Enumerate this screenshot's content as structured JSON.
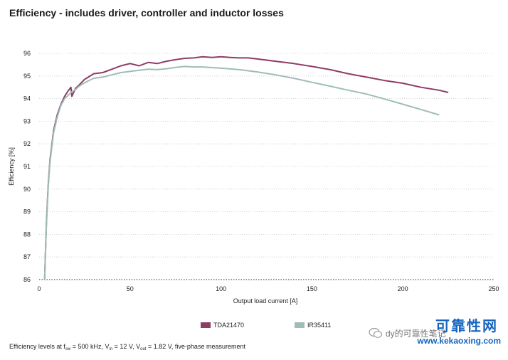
{
  "title": "Efficiency - includes driver, controller and inductor losses",
  "chart_data": {
    "type": "line",
    "xlabel": "Output load current [A]",
    "ylabel": "Efficiency [%]",
    "xlim": [
      0,
      250
    ],
    "ylim": [
      86,
      96
    ],
    "xticks": [
      0,
      50,
      100,
      150,
      200,
      250
    ],
    "yticks": [
      86,
      87,
      88,
      89,
      90,
      91,
      92,
      93,
      94,
      95,
      96
    ],
    "grid": "horizontal dotted",
    "legend_position": "bottom",
    "series": [
      {
        "name": "TDA21470",
        "color": "#8e3c64",
        "x": [
          3,
          4,
          5,
          6,
          8,
          10,
          12,
          14,
          16,
          17.5,
          18,
          20,
          22,
          25,
          30,
          35,
          40,
          45,
          50,
          55,
          60,
          65,
          70,
          75,
          80,
          85,
          90,
          95,
          100,
          105,
          110,
          115,
          120,
          130,
          140,
          150,
          160,
          170,
          180,
          190,
          200,
          210,
          220,
          225
        ],
        "y": [
          86.0,
          88.5,
          90.2,
          91.3,
          92.6,
          93.3,
          93.75,
          94.1,
          94.35,
          94.5,
          94.1,
          94.45,
          94.6,
          94.85,
          95.1,
          95.15,
          95.3,
          95.45,
          95.55,
          95.45,
          95.6,
          95.55,
          95.65,
          95.72,
          95.78,
          95.8,
          95.85,
          95.82,
          95.85,
          95.82,
          95.8,
          95.8,
          95.75,
          95.65,
          95.55,
          95.42,
          95.28,
          95.1,
          94.95,
          94.8,
          94.68,
          94.5,
          94.37,
          94.27
        ]
      },
      {
        "name": "IR35411",
        "color": "#9fbdb8",
        "x": [
          3,
          4,
          5,
          6,
          8,
          10,
          12,
          14,
          16,
          18,
          20,
          22,
          25,
          30,
          35,
          40,
          45,
          50,
          55,
          60,
          65,
          70,
          75,
          80,
          85,
          90,
          95,
          100,
          110,
          120,
          130,
          140,
          150,
          160,
          170,
          180,
          190,
          200,
          210,
          220
        ],
        "y": [
          86.0,
          88.4,
          90.1,
          91.2,
          92.5,
          93.2,
          93.7,
          94.0,
          94.15,
          94.3,
          94.4,
          94.55,
          94.7,
          94.9,
          94.95,
          95.05,
          95.15,
          95.2,
          95.25,
          95.3,
          95.28,
          95.32,
          95.38,
          95.42,
          95.4,
          95.4,
          95.37,
          95.35,
          95.28,
          95.18,
          95.05,
          94.9,
          94.72,
          94.55,
          94.37,
          94.2,
          93.98,
          93.75,
          93.52,
          93.28
        ]
      }
    ]
  },
  "footnote": {
    "prefix": "Efficiency levels at f",
    "sub1": "sw",
    "part2": " = 500 kHz, V",
    "sub2": "in",
    "part3": " = 12 V, V",
    "sub3": "out",
    "part4": " = 1.82 V, five-phase measurement"
  },
  "watermark": {
    "cn_title": "可靠性网",
    "site": "www.kekaoxing.com",
    "mid": "dy的可靠性笔记"
  }
}
